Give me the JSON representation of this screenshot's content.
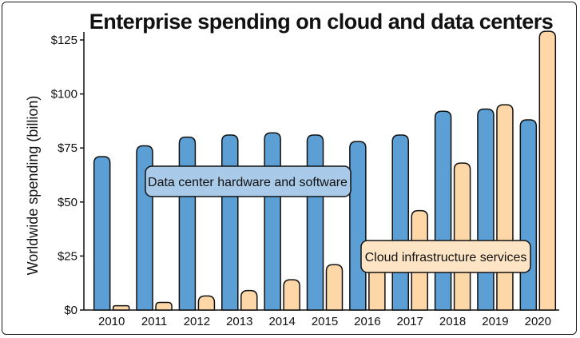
{
  "chart_data": {
    "type": "bar",
    "title": "Enterprise spending on cloud and data centers",
    "xlabel": "",
    "ylabel": "Worldwide spending (billion)",
    "ylim": [
      0,
      125
    ],
    "y_ticks": [
      "$0",
      "$25",
      "$50",
      "$75",
      "$100",
      "$125"
    ],
    "y_tick_values": [
      0,
      25,
      50,
      75,
      100,
      125
    ],
    "categories": [
      "2010",
      "2011",
      "2012",
      "2013",
      "2014",
      "2015",
      "2016",
      "2017",
      "2018",
      "2019",
      "2020"
    ],
    "series": [
      {
        "name": "Data center hardware and software",
        "color": "#5b9fd4",
        "label_color": "#a9cbe9",
        "values": [
          71,
          76,
          80,
          81,
          82,
          81,
          78,
          81,
          92,
          93,
          88
        ]
      },
      {
        "name": "Cloud infrastructure services",
        "color": "#fdd7a8",
        "label_color": "#fde4c4",
        "values": [
          2,
          3.5,
          6.5,
          9,
          14,
          21,
          31,
          46,
          68,
          95,
          129
        ]
      }
    ],
    "grid": false,
    "legend": "inline labels"
  }
}
